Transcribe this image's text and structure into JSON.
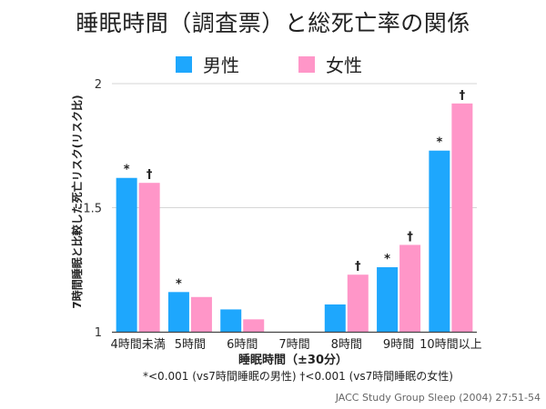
{
  "chart_data": {
    "type": "bar",
    "title": "睡眠時間（調査票）と総死亡率の関係",
    "xlabel": "睡眠時間（±30分）",
    "ylabel": "7時間睡眠と比較した死亡リスク(リスク比)",
    "ylim": [
      1,
      2
    ],
    "yticks": [
      1,
      1.5,
      2
    ],
    "ytick_labels": [
      "1",
      "1.5",
      "2"
    ],
    "grid": true,
    "legend_position": "top-center",
    "categories": [
      "4時間未満",
      "5時間",
      "6時間",
      "7時間",
      "8時間",
      "9時間",
      "10時間以上"
    ],
    "series": [
      {
        "name": "男性",
        "color": "#1ea7fd",
        "values": [
          1.62,
          1.16,
          1.09,
          1.0,
          1.11,
          1.26,
          1.73
        ],
        "marks": [
          "*",
          "*",
          "",
          "",
          "",
          "*",
          "*"
        ]
      },
      {
        "name": "女性",
        "color": "#ff96c8",
        "values": [
          1.6,
          1.14,
          1.05,
          1.0,
          1.23,
          1.35,
          1.92
        ],
        "marks": [
          "†",
          "",
          "",
          "",
          "†",
          "†",
          "†"
        ]
      }
    ],
    "footnote": "*<0.001 (vs7時間睡眠の男性)   †<0.001 (vs7時間睡眠の女性)",
    "source": "JACC Study Group Sleep (2004) 27:51-54"
  }
}
